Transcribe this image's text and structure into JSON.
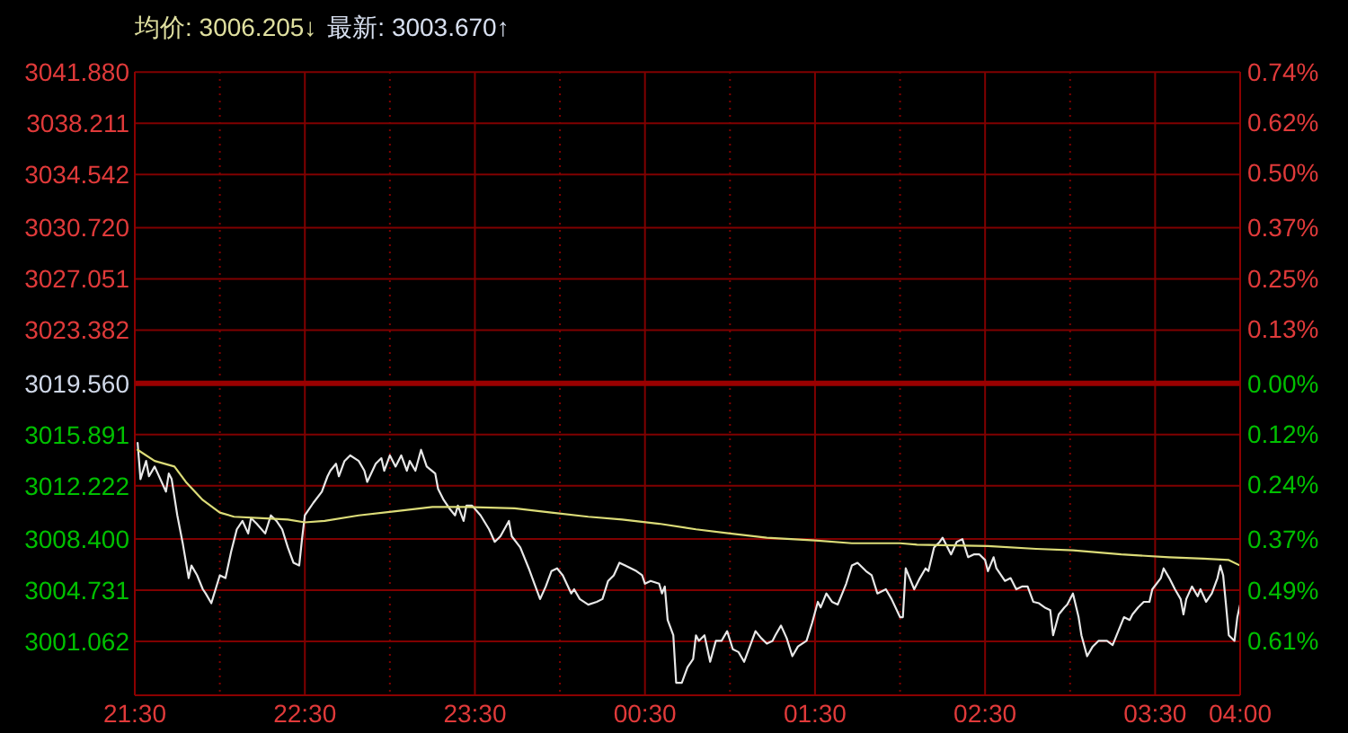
{
  "chart_data": {
    "type": "line",
    "annotations": [
      "均价: 3006.205↓",
      "最新: 3003.670↑"
    ],
    "xlim": [
      "--07-25T21:30",
      "--07-26T04:00"
    ],
    "xticks": [
      {
        "value": "--07-25T21:30",
        "label": "21:30"
      },
      {
        "value": "--07-25T22:00",
        "label": null
      },
      {
        "value": "--07-25T22:30",
        "label": "22:30"
      },
      {
        "value": "--07-25T23:00",
        "label": null
      },
      {
        "value": "--07-25T23:30",
        "label": "23:30"
      },
      {
        "value": "--07-26T00:00",
        "label": null
      },
      {
        "value": "--07-26T00:30",
        "label": "00:30"
      },
      {
        "value": "--07-26T01:00",
        "label": null
      },
      {
        "value": "--07-26T01:30",
        "label": "01:30"
      },
      {
        "value": "--07-26T02:00",
        "label": null
      },
      {
        "value": "--07-26T02:30",
        "label": "02:30"
      },
      {
        "value": "--07-26T03:00",
        "label": null
      },
      {
        "value": "--07-26T03:30",
        "label": "03:30"
      },
      {
        "value": "--07-26T04:00",
        "label": "04:00"
      }
    ],
    "ylim": [
      2997.2,
      3041.9
    ],
    "yticks": [
      {
        "value": 3041.88,
        "label": "3041.880"
      },
      {
        "value": 3038.211,
        "label": "3038.211"
      },
      {
        "value": 3034.542,
        "label": "3034.542"
      },
      {
        "value": 3030.72,
        "label": "3030.720"
      },
      {
        "value": 3027.051,
        "label": "3027.051"
      },
      {
        "value": 3023.382,
        "label": "3023.382"
      },
      {
        "value": 3019.56,
        "label": "3019.560"
      },
      {
        "value": 3015.891,
        "label": "3015.891"
      },
      {
        "value": 3012.222,
        "label": "3012.222"
      },
      {
        "value": 3008.4,
        "label": "3008.400"
      },
      {
        "value": 3004.731,
        "label": "3004.731"
      },
      {
        "value": 3001.062,
        "label": "3001.062"
      }
    ],
    "y2lim": [
      -0.74,
      0.74
    ],
    "y2ticks": [
      {
        "value": 0.74,
        "label": "0.74%"
      },
      {
        "value": 0.62,
        "label": "0.62%"
      },
      {
        "value": 0.5,
        "label": "0.50%"
      },
      {
        "value": 0.37,
        "label": "0.37%"
      },
      {
        "value": 0.25,
        "label": "0.25%"
      },
      {
        "value": 0.13,
        "label": "0.13%"
      },
      {
        "value": 0,
        "label": "0.00%"
      },
      {
        "value": -0.12,
        "label": "0.12%"
      },
      {
        "value": -0.24,
        "label": "0.24%"
      },
      {
        "value": -0.37,
        "label": "0.37%"
      },
      {
        "value": -0.49,
        "label": "0.49%"
      },
      {
        "value": -0.61,
        "label": "0.61%"
      }
    ],
    "grid": true,
    "ref_lines": [
      {
        "axis": "y",
        "value": 3019.56,
        "color": "#990000"
      }
    ],
    "series": [
      {
        "color": "#e8e8e8",
        "x": [
          "--07-25T21:31",
          "--07-25T21:32",
          "--07-25T21:34",
          "--07-25T21:35",
          "--07-25T21:37",
          "--07-25T21:41",
          "--07-25T21:42",
          "--07-25T21:43",
          "--07-25T21:45",
          "--07-25T21:47",
          "--07-25T21:49",
          "--07-25T21:50",
          "--07-25T21:52",
          "--07-25T21:54",
          "--07-25T21:55",
          "--07-25T21:57",
          "--07-25T22:00",
          "--07-25T22:02",
          "--07-25T22:04",
          "--07-25T22:06",
          "--07-25T22:08",
          "--07-25T22:10",
          "--07-25T22:11",
          "--07-25T22:13",
          "--07-25T22:16",
          "--07-25T22:18",
          "--07-25T22:20",
          "--07-25T22:22",
          "--07-25T22:24",
          "--07-25T22:26",
          "--07-25T22:28",
          "--07-25T22:29",
          "--07-25T22:30",
          "--07-25T22:33",
          "--07-25T22:36",
          "--07-25T22:38",
          "--07-25T22:39",
          "--07-25T22:41",
          "--07-25T22:42",
          "--07-25T22:44",
          "--07-25T22:46",
          "--07-25T22:49",
          "--07-25T22:51",
          "--07-25T22:52",
          "--07-25T22:55",
          "--07-25T22:57",
          "--07-25T22:58",
          "--07-25T23:00",
          "--07-25T23:02",
          "--07-25T23:04",
          "--07-25T23:06",
          "--07-25T23:07",
          "--07-25T23:09",
          "--07-25T23:11",
          "--07-25T23:13",
          "--07-25T23:16",
          "--07-25T23:17",
          "--07-25T23:19",
          "--07-25T23:21",
          "--07-25T23:23",
          "--07-25T23:24",
          "--07-25T23:26",
          "--07-25T23:27",
          "--07-25T23:29",
          "--07-25T23:32",
          "--07-25T23:35",
          "--07-25T23:37",
          "--07-25T23:39",
          "--07-25T23:42",
          "--07-25T23:43",
          "--07-25T23:46",
          "--07-25T23:49",
          "--07-25T23:51",
          "--07-25T23:53",
          "--07-25T23:55",
          "--07-25T23:57",
          "--07-25T23:59",
          "--07-26T00:01",
          "--07-26T00:04",
          "--07-26T00:05",
          "--07-26T00:07",
          "--07-26T00:10",
          "--07-26T00:13",
          "--07-26T00:15",
          "--07-26T00:17",
          "--07-26T00:19",
          "--07-26T00:21",
          "--07-26T00:23",
          "--07-26T00:27",
          "--07-26T00:29",
          "--07-26T00:30",
          "--07-26T00:32",
          "--07-26T00:35",
          "--07-26T00:36",
          "--07-26T00:37",
          "--07-26T00:38",
          "--07-26T00:40",
          "--07-26T00:41",
          "--07-26T00:43",
          "--07-26T00:45",
          "--07-26T00:47",
          "--07-26T00:48",
          "--07-26T00:49",
          "--07-26T00:51",
          "--07-26T00:53",
          "--07-26T00:55",
          "--07-26T00:57",
          "--07-26T00:59",
          "--07-26T01:01",
          "--07-26T01:03",
          "--07-26T01:05",
          "--07-26T01:07",
          "--07-26T01:09",
          "--07-26T01:11",
          "--07-26T01:13",
          "--07-26T01:15",
          "--07-26T01:16",
          "--07-26T01:18",
          "--07-26T01:20",
          "--07-26T01:22",
          "--07-26T01:24",
          "--07-26T01:27",
          "--07-26T01:29",
          "--07-26T01:31",
          "--07-26T01:32",
          "--07-26T01:34",
          "--07-26T01:36",
          "--07-26T01:38",
          "--07-26T01:41",
          "--07-26T01:43",
          "--07-26T01:45",
          "--07-26T01:48",
          "--07-26T01:50",
          "--07-26T01:52",
          "--07-26T01:55",
          "--07-26T01:57",
          "--07-26T02:00",
          "--07-26T02:01",
          "--07-26T02:02",
          "--07-26T02:03",
          "--07-26T02:05",
          "--07-26T02:07",
          "--07-26T02:09",
          "--07-26T02:10",
          "--07-26T02:12",
          "--07-26T02:14",
          "--07-26T02:15",
          "--07-26T02:18",
          "--07-26T02:20",
          "--07-26T02:22",
          "--07-26T02:24",
          "--07-26T02:26",
          "--07-26T02:28",
          "--07-26T02:30",
          "--07-26T02:31",
          "--07-26T02:33",
          "--07-26T02:34",
          "--07-26T02:37",
          "--07-26T02:39",
          "--07-26T02:41",
          "--07-26T02:43",
          "--07-26T02:45",
          "--07-26T02:47",
          "--07-26T02:49",
          "--07-26T02:51",
          "--07-26T02:53",
          "--07-26T02:54",
          "--07-26T02:56",
          "--07-26T02:58",
          "--07-26T02:59",
          "--07-26T03:01",
          "--07-26T03:03",
          "--07-26T03:04",
          "--07-26T03:06",
          "--07-26T03:08",
          "--07-26T03:10",
          "--07-26T03:13",
          "--07-26T03:15",
          "--07-26T03:17",
          "--07-26T03:19",
          "--07-26T03:21",
          "--07-26T03:22",
          "--07-26T03:24",
          "--07-26T03:26",
          "--07-26T03:28",
          "--07-26T03:29",
          "--07-26T03:32",
          "--07-26T03:33",
          "--07-26T03:35",
          "--07-26T03:37",
          "--07-26T03:39",
          "--07-26T03:40",
          "--07-26T03:41",
          "--07-26T03:43",
          "--07-26T03:45",
          "--07-26T03:46",
          "--07-26T03:48",
          "--07-26T03:50",
          "--07-26T03:52",
          "--07-26T03:53",
          "--07-26T03:54",
          "--07-26T03:55",
          "--07-26T03:56",
          "--07-26T03:58",
          "--07-26T03:59",
          "--07-26T04:00"
        ],
        "values": [
          3015.3,
          3012.7,
          3014.0,
          3012.9,
          3013.6,
          3011.8,
          3013.1,
          3012.7,
          3010.1,
          3008.0,
          3005.6,
          3006.5,
          3005.8,
          3004.8,
          3004.5,
          3003.8,
          3005.8,
          3005.6,
          3007.5,
          3009.1,
          3009.7,
          3008.8,
          3009.9,
          3009.5,
          3008.8,
          3010.1,
          3009.7,
          3009.1,
          3007.8,
          3006.7,
          3006.5,
          3008.4,
          3010.1,
          3011.0,
          3011.8,
          3012.9,
          3013.3,
          3013.8,
          3012.9,
          3014.0,
          3014.4,
          3014.0,
          3013.3,
          3012.5,
          3013.8,
          3014.2,
          3013.3,
          3014.4,
          3013.6,
          3014.4,
          3013.3,
          3014.0,
          3013.3,
          3014.8,
          3013.6,
          3013.1,
          3012.0,
          3011.2,
          3010.6,
          3010.1,
          3010.8,
          3009.7,
          3010.8,
          3010.8,
          3010.1,
          3009.1,
          3008.2,
          3008.6,
          3009.7,
          3008.6,
          3007.8,
          3006.3,
          3005.2,
          3004.1,
          3005.0,
          3006.1,
          3006.3,
          3005.8,
          3004.5,
          3004.8,
          3004.1,
          3003.7,
          3003.9,
          3004.1,
          3005.4,
          3005.8,
          3006.7,
          3006.5,
          3006.1,
          3005.8,
          3005.2,
          3005.4,
          3005.2,
          3004.5,
          3005.0,
          3002.6,
          3001.5,
          2998.1,
          2998.1,
          2999.2,
          2999.8,
          3001.5,
          3001.1,
          3001.5,
          2999.6,
          3001.1,
          3001.1,
          3001.8,
          3000.5,
          3000.3,
          2999.6,
          3000.7,
          3001.8,
          3001.3,
          3000.9,
          3001.1,
          3001.5,
          3002.2,
          3001.3,
          3000.0,
          3000.7,
          3001.1,
          3002.4,
          3003.9,
          3003.5,
          3004.5,
          3003.9,
          3003.7,
          3005.2,
          3006.5,
          3006.7,
          3006.1,
          3005.8,
          3004.5,
          3004.8,
          3004.1,
          3002.8,
          3002.8,
          3006.3,
          3005.8,
          3004.8,
          3005.6,
          3006.3,
          3006.1,
          3007.8,
          3008.2,
          3008.5,
          3007.3,
          3008.2,
          3008.4,
          3007.1,
          3007.3,
          3007.3,
          3006.9,
          3006.1,
          3007.1,
          3006.3,
          3005.4,
          3005.6,
          3004.8,
          3005.0,
          3005.0,
          3003.9,
          3003.8,
          3003.5,
          3003.3,
          3001.5,
          3003.0,
          3003.5,
          3003.7,
          3004.5,
          3002.8,
          3001.5,
          3000.0,
          3000.7,
          3001.1,
          3001.1,
          3000.8,
          3001.8,
          3002.8,
          3002.6,
          3003.0,
          3003.5,
          3003.9,
          3003.9,
          3004.8,
          3005.6,
          3006.3,
          3005.6,
          3004.8,
          3004.1,
          3003.0,
          3004.1,
          3005.0,
          3004.3,
          3004.8,
          3003.9,
          3004.5,
          3005.6,
          3006.5,
          3005.8,
          3003.7,
          3001.5,
          3001.1,
          3002.8,
          3003.7
        ]
      },
      {
        "color": "#dcdc78",
        "x": [
          "--07-25T21:31",
          "--07-25T21:37",
          "--07-25T21:44",
          "--07-25T21:48",
          "--07-25T21:54",
          "--07-25T22:00",
          "--07-25T22:05",
          "--07-25T22:15",
          "--07-25T22:24",
          "--07-25T22:30",
          "--07-25T22:37",
          "--07-25T22:49",
          "--07-25T23:02",
          "--07-25T23:15",
          "--07-25T23:27",
          "--07-25T23:44",
          "--07-25T23:57",
          "--07-26T00:10",
          "--07-26T00:22",
          "--07-26T00:35",
          "--07-26T00:48",
          "--07-26T01:00",
          "--07-26T01:13",
          "--07-26T01:30",
          "--07-26T01:43",
          "--07-26T02:00",
          "--07-26T02:06",
          "--07-26T02:31",
          "--07-26T02:48",
          "--07-26T03:01",
          "--07-26T03:18",
          "--07-26T03:35",
          "--07-26T03:47",
          "--07-26T03:56",
          "--07-26T04:00"
        ],
        "values": [
          3014.8,
          3014.0,
          3013.6,
          3012.5,
          3011.2,
          3010.3,
          3010.0,
          3009.9,
          3009.8,
          3009.6,
          3009.7,
          3010.1,
          3010.4,
          3010.7,
          3010.7,
          3010.6,
          3010.3,
          3010.0,
          3009.8,
          3009.5,
          3009.1,
          3008.8,
          3008.5,
          3008.3,
          3008.1,
          3008.1,
          3008.0,
          3007.9,
          3007.7,
          3007.6,
          3007.3,
          3007.1,
          3007.0,
          3006.9,
          3006.5
        ]
      }
    ]
  }
}
